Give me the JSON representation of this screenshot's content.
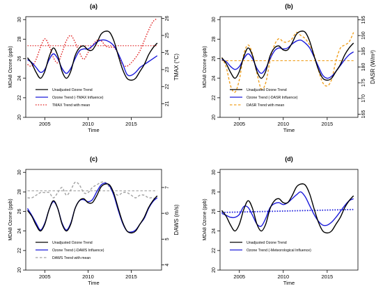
{
  "figure": {
    "panels": [
      "(a)",
      "(b)",
      "(c)",
      "(d)"
    ]
  },
  "chart_data": [
    {
      "type": "line",
      "panel_label": "(a)",
      "xlabel": "Time",
      "ylabel": "MDA8 Ozone (ppb)",
      "ylabel_right": "TMAX (°C)",
      "xlim": [
        2002.8,
        2018.5
      ],
      "ylim": [
        20,
        30.3
      ],
      "ylim_right": [
        20.2,
        26.1
      ],
      "xticks": [
        2005,
        2010,
        2015
      ],
      "yticks": [
        20,
        22,
        24,
        26,
        28,
        30
      ],
      "yticks_right": [
        21,
        22,
        23,
        24,
        25,
        26
      ],
      "legend": "bottom-left",
      "series": [
        {
          "name": "Unadjusted Ozone Trend",
          "color": "#000000",
          "axis": "left",
          "dash": "solid",
          "x": [
            2003,
            2003.5,
            2004,
            2004.5,
            2005,
            2005.5,
            2006,
            2006.5,
            2007,
            2007.5,
            2008,
            2008.5,
            2009,
            2009.5,
            2010,
            2010.5,
            2011,
            2011.5,
            2012,
            2012.5,
            2013,
            2013.5,
            2014,
            2014.5,
            2015,
            2015.5,
            2016,
            2016.5,
            2017,
            2017.5,
            2018
          ],
          "y": [
            26.1,
            25.5,
            24.6,
            24.0,
            24.7,
            26.2,
            27.1,
            26.3,
            24.7,
            24.0,
            24.7,
            26.3,
            27.1,
            27.3,
            26.9,
            26.9,
            27.6,
            28.5,
            28.8,
            28.7,
            27.8,
            26.3,
            24.9,
            24.0,
            23.8,
            24.0,
            24.7,
            25.4,
            26.4,
            27.1,
            27.6
          ]
        },
        {
          "name": "Ozone Trend (-TMAX Influence)",
          "color": "#1a1adb",
          "axis": "left",
          "dash": "solid",
          "x": [
            2003,
            2003.5,
            2004,
            2004.5,
            2005,
            2005.5,
            2006,
            2006.5,
            2007,
            2007.5,
            2008,
            2008.5,
            2009,
            2009.5,
            2010,
            2010.5,
            2011,
            2011.5,
            2012,
            2012.5,
            2013,
            2013.5,
            2014,
            2014.5,
            2015,
            2015.5,
            2016,
            2016.5,
            2017,
            2017.5,
            2018
          ],
          "y": [
            25.9,
            25.6,
            25.1,
            24.6,
            24.9,
            25.9,
            26.5,
            26.0,
            25.0,
            24.5,
            25.0,
            26.0,
            26.8,
            27.0,
            27.0,
            27.3,
            27.7,
            27.9,
            27.9,
            27.7,
            27.3,
            26.5,
            25.5,
            24.4,
            24.3,
            24.6,
            25.1,
            25.4,
            25.7,
            26.0,
            26.3
          ]
        },
        {
          "name": "TMAX Trend with mean",
          "color": "#e02020",
          "axis": "right",
          "dash": "dotted",
          "x": [
            2003,
            2003.5,
            2004,
            2004.5,
            2005,
            2005.5,
            2006,
            2006.5,
            2007,
            2007.5,
            2008,
            2008.5,
            2009,
            2009.5,
            2010,
            2010.5,
            2011,
            2011.5,
            2012,
            2012.5,
            2013,
            2013.5,
            2014,
            2014.5,
            2015,
            2015.5,
            2016,
            2016.5,
            2017,
            2017.5,
            2018
          ],
          "y": [
            23.3,
            23.2,
            23.6,
            24.3,
            24.8,
            24.4,
            23.7,
            23.4,
            24.0,
            24.7,
            25.0,
            24.6,
            24.0,
            23.6,
            24.0,
            24.4,
            24.7,
            24.7,
            24.4,
            24.3,
            24.3,
            23.9,
            23.3,
            23.2,
            23.4,
            23.7,
            24.1,
            24.7,
            25.3,
            25.8,
            26.0
          ]
        },
        {
          "name": "",
          "color": "#e02020",
          "axis": "right",
          "dash": "dotted",
          "role": "mean",
          "x": [
            2003,
            2018
          ],
          "y": [
            24.4,
            24.4
          ]
        }
      ]
    },
    {
      "type": "line",
      "panel_label": "(b)",
      "xlabel": "Time",
      "ylabel": "MDA8 Ozone (ppb)",
      "ylabel_right": "DASR (W/m²)",
      "xlim": [
        2002.8,
        2018.5
      ],
      "ylim": [
        20,
        30.3
      ],
      "ylim_right": [
        164,
        196
      ],
      "xticks": [
        2005,
        2010,
        2015
      ],
      "yticks": [
        20,
        22,
        24,
        26,
        28,
        30
      ],
      "yticks_right": [
        165,
        170,
        175,
        180,
        185,
        190,
        195
      ],
      "legend": "bottom-left",
      "series": [
        {
          "name": "Unadjusted Ozone Trend",
          "color": "#000000",
          "axis": "left",
          "dash": "solid",
          "x": [
            2003,
            2003.5,
            2004,
            2004.5,
            2005,
            2005.5,
            2006,
            2006.5,
            2007,
            2007.5,
            2008,
            2008.5,
            2009,
            2009.5,
            2010,
            2010.5,
            2011,
            2011.5,
            2012,
            2012.5,
            2013,
            2013.5,
            2014,
            2014.5,
            2015,
            2015.5,
            2016,
            2016.5,
            2017,
            2017.5,
            2018
          ],
          "y": [
            26.1,
            25.5,
            24.6,
            24.0,
            24.7,
            26.2,
            27.1,
            26.3,
            24.7,
            24.0,
            24.7,
            26.3,
            27.1,
            27.3,
            26.9,
            26.9,
            27.6,
            28.5,
            28.8,
            28.7,
            27.8,
            26.3,
            24.9,
            24.0,
            23.8,
            24.0,
            24.7,
            25.4,
            26.4,
            27.1,
            27.6
          ]
        },
        {
          "name": "Ozone Trend (-DASR Influence)",
          "color": "#1a1adb",
          "axis": "left",
          "dash": "solid",
          "x": [
            2003,
            2003.5,
            2004,
            2004.5,
            2005,
            2005.5,
            2006,
            2006.5,
            2007,
            2007.5,
            2008,
            2008.5,
            2009,
            2009.5,
            2010,
            2010.5,
            2011,
            2011.5,
            2012,
            2012.5,
            2013,
            2013.5,
            2014,
            2014.5,
            2015,
            2015.5,
            2016,
            2016.5,
            2017,
            2017.5,
            2018
          ],
          "y": [
            25.9,
            25.7,
            25.2,
            24.9,
            25.2,
            26.0,
            26.5,
            26.0,
            25.0,
            24.5,
            25.0,
            26.0,
            26.8,
            27.1,
            27.0,
            27.1,
            27.5,
            27.8,
            27.9,
            27.6,
            27.1,
            26.2,
            25.2,
            24.3,
            24.0,
            24.2,
            24.7,
            25.3,
            25.9,
            26.4,
            26.7
          ]
        },
        {
          "name": "DASR Trend with mean",
          "color": "#f0a020",
          "axis": "right",
          "dash": "dashed",
          "x": [
            2003,
            2003.5,
            2004,
            2004.5,
            2005,
            2005.5,
            2006,
            2006.5,
            2007,
            2007.5,
            2008,
            2008.5,
            2009,
            2009.5,
            2010,
            2010.5,
            2011,
            2011.5,
            2012,
            2012.5,
            2013,
            2013.5,
            2014,
            2014.5,
            2015,
            2015.5,
            2016,
            2016.5,
            2017,
            2017.5,
            2018
          ],
          "y": [
            183,
            180,
            174,
            172,
            176,
            184,
            187,
            184,
            178,
            173,
            175,
            182,
            187,
            189,
            188,
            188,
            189,
            191,
            190,
            189,
            187,
            184,
            179,
            175,
            174,
            176,
            182,
            186,
            187,
            188,
            191
          ]
        },
        {
          "name": "",
          "color": "#f0a020",
          "axis": "right",
          "dash": "dashed",
          "role": "mean",
          "x": [
            2003,
            2018
          ],
          "y": [
            182,
            182
          ]
        }
      ]
    },
    {
      "type": "line",
      "panel_label": "(c)",
      "xlabel": "Time",
      "ylabel": "MDA8 Ozone (ppb)",
      "ylabel_right": "DAWS (m/s)",
      "xlim": [
        2002.8,
        2018.5
      ],
      "ylim": [
        20,
        30.3
      ],
      "ylim_right": [
        3.8,
        7.7
      ],
      "xticks": [
        2005,
        2010,
        2015
      ],
      "yticks": [
        20,
        22,
        24,
        26,
        28,
        30
      ],
      "yticks_right": [
        4,
        5,
        6,
        7
      ],
      "legend": "bottom-left",
      "series": [
        {
          "name": "Unadjusted Ozone Trend",
          "color": "#000000",
          "axis": "left",
          "dash": "solid",
          "x": [
            2003,
            2003.5,
            2004,
            2004.5,
            2005,
            2005.5,
            2006,
            2006.5,
            2007,
            2007.5,
            2008,
            2008.5,
            2009,
            2009.5,
            2010,
            2010.5,
            2011,
            2011.5,
            2012,
            2012.5,
            2013,
            2013.5,
            2014,
            2014.5,
            2015,
            2015.5,
            2016,
            2016.5,
            2017,
            2017.5,
            2018
          ],
          "y": [
            26.1,
            25.5,
            24.6,
            24.0,
            24.7,
            26.2,
            27.1,
            26.3,
            24.7,
            24.0,
            24.7,
            26.3,
            27.1,
            27.3,
            26.9,
            26.9,
            27.6,
            28.5,
            28.8,
            28.7,
            27.8,
            26.3,
            24.9,
            24.0,
            23.8,
            24.0,
            24.7,
            25.4,
            26.4,
            27.1,
            27.6
          ]
        },
        {
          "name": "Ozone Trend (-DAWS Influence)",
          "color": "#1a1adb",
          "axis": "left",
          "dash": "solid",
          "x": [
            2003,
            2003.5,
            2004,
            2004.5,
            2005,
            2005.5,
            2006,
            2006.5,
            2007,
            2007.5,
            2008,
            2008.5,
            2009,
            2009.5,
            2010,
            2010.5,
            2011,
            2011.5,
            2012,
            2012.5,
            2013,
            2013.5,
            2014,
            2014.5,
            2015,
            2015.5,
            2016,
            2016.5,
            2017,
            2017.5,
            2018
          ],
          "y": [
            26.3,
            25.6,
            24.8,
            24.1,
            24.8,
            26.2,
            27.0,
            26.3,
            24.8,
            24.1,
            24.8,
            26.3,
            27.1,
            27.2,
            27.0,
            27.2,
            28.0,
            28.7,
            28.9,
            28.6,
            27.6,
            26.1,
            24.8,
            24.0,
            23.9,
            24.1,
            24.7,
            25.3,
            26.3,
            27.0,
            27.4
          ]
        },
        {
          "name": "DAWS Trend with mean",
          "color": "#a0a0a0",
          "axis": "right",
          "dash": "dashed",
          "x": [
            2003,
            2003.5,
            2004,
            2004.5,
            2005,
            2005.5,
            2006,
            2006.5,
            2007,
            2007.5,
            2008,
            2008.5,
            2009,
            2009.5,
            2010,
            2010.5,
            2011,
            2011.5,
            2012,
            2012.5,
            2013,
            2013.5,
            2014,
            2014.5,
            2015,
            2015.5,
            2016,
            2016.5,
            2017,
            2017.5,
            2018
          ],
          "y": [
            6.6,
            6.6,
            6.7,
            6.8,
            6.8,
            6.8,
            6.6,
            6.8,
            7.0,
            6.7,
            6.9,
            7.2,
            7.1,
            6.8,
            6.8,
            7.0,
            7.1,
            7.2,
            7.2,
            7.0,
            6.8,
            6.7,
            6.8,
            6.8,
            6.7,
            6.6,
            6.7,
            6.7,
            6.6,
            6.6,
            6.5
          ]
        },
        {
          "name": "",
          "color": "#a0a0a0",
          "axis": "right",
          "dash": "dashed",
          "role": "mean",
          "x": [
            2003,
            2018
          ],
          "y": [
            6.87,
            6.87
          ]
        }
      ]
    },
    {
      "type": "line",
      "panel_label": "(d)",
      "xlabel": "Time",
      "ylabel": "MDA8 Ozone (ppb)",
      "ylabel_right": "",
      "xlim": [
        2002.8,
        2018.5
      ],
      "ylim": [
        20,
        30.3
      ],
      "xticks": [
        2005,
        2010,
        2015
      ],
      "yticks": [
        20,
        22,
        24,
        26,
        28,
        30
      ],
      "legend": "bottom-left",
      "series": [
        {
          "name": "Unadjusted Ozone Trend",
          "color": "#000000",
          "axis": "left",
          "dash": "solid",
          "x": [
            2003,
            2003.5,
            2004,
            2004.5,
            2005,
            2005.5,
            2006,
            2006.5,
            2007,
            2007.5,
            2008,
            2008.5,
            2009,
            2009.5,
            2010,
            2010.5,
            2011,
            2011.5,
            2012,
            2012.5,
            2013,
            2013.5,
            2014,
            2014.5,
            2015,
            2015.5,
            2016,
            2016.5,
            2017,
            2017.5,
            2018
          ],
          "y": [
            26.1,
            25.5,
            24.6,
            24.0,
            24.7,
            26.2,
            27.1,
            26.3,
            24.7,
            24.0,
            24.7,
            26.3,
            27.1,
            27.3,
            26.9,
            26.9,
            27.6,
            28.5,
            28.8,
            28.7,
            27.8,
            26.3,
            24.9,
            24.0,
            23.8,
            24.0,
            24.7,
            25.4,
            26.4,
            27.1,
            27.6
          ]
        },
        {
          "name": "Ozone Trend (-Meteorological Influence)",
          "color": "#1a1adb",
          "axis": "left",
          "dash": "solid",
          "x": [
            2003,
            2003.5,
            2004,
            2004.5,
            2005,
            2005.5,
            2006,
            2006.5,
            2007,
            2007.5,
            2008,
            2008.5,
            2009,
            2009.5,
            2010,
            2010.5,
            2011,
            2011.5,
            2012,
            2012.5,
            2013,
            2013.5,
            2014,
            2014.5,
            2015,
            2015.5,
            2016,
            2016.5,
            2017,
            2017.5,
            2018
          ],
          "y": [
            25.8,
            25.6,
            25.4,
            25.4,
            25.7,
            26.5,
            26.4,
            25.6,
            24.7,
            24.5,
            25.3,
            26.4,
            26.8,
            26.9,
            26.7,
            26.9,
            27.3,
            27.7,
            28.0,
            27.5,
            26.6,
            25.7,
            25.0,
            24.6,
            24.6,
            24.9,
            25.4,
            26.0,
            26.6,
            27.1,
            27.3
          ]
        },
        {
          "name": "",
          "color": "#1a1adb",
          "axis": "left",
          "dash": "dotted",
          "role": "trend",
          "x": [
            2003,
            2018
          ],
          "y": [
            25.9,
            26.2
          ]
        }
      ]
    }
  ]
}
